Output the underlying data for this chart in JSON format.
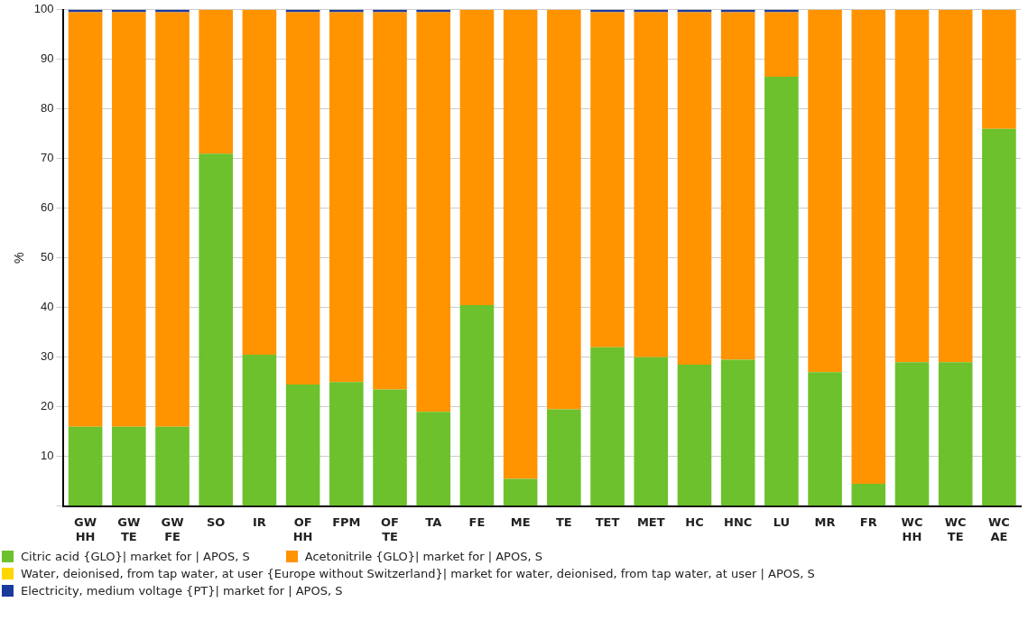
{
  "chart_data": {
    "type": "bar",
    "stacked": true,
    "ylabel": "%",
    "categories": [
      "GW\nHH",
      "GW\nTE",
      "GW\nFE",
      "SO",
      "IR",
      "OF\nHH",
      "FPM",
      "OF\nTE",
      "TA",
      "FE",
      "ME",
      "TE",
      "TET",
      "MET",
      "HC",
      "HNC",
      "LU",
      "MR",
      "FR",
      "WC\nHH",
      "WC\nTE",
      "WC\nAE"
    ],
    "series": [
      {
        "name": "Citric acid {GLO}| market for | APOS, S",
        "color": "#6cc12c",
        "values": [
          16,
          16,
          16,
          71,
          30.5,
          24.5,
          25,
          23.5,
          19,
          40.5,
          5.5,
          19.5,
          32,
          30,
          28.5,
          29.5,
          86.5,
          27,
          4.5,
          29,
          29,
          76
        ]
      },
      {
        "name": "Acetonitrile {GLO}| market for | APOS, S",
        "color": "#ff9300",
        "values": [
          83.5,
          83.5,
          83.5,
          29,
          69.5,
          75,
          74.5,
          76,
          80.5,
          59.5,
          94.5,
          80.5,
          67.5,
          69.5,
          71,
          70,
          13,
          73,
          95.5,
          71,
          71,
          24
        ]
      },
      {
        "name": "Water, deionised, from tap water, at user {Europe without Switzerland}| market for water, deionised, from tap water, at user | APOS, S",
        "color": "#ffd700",
        "values": [
          0,
          0,
          0,
          0,
          0,
          0,
          0,
          0,
          0,
          0,
          0,
          0,
          0,
          0,
          0,
          0,
          0,
          0,
          0,
          0,
          0,
          0
        ]
      },
      {
        "name": "Electricity, medium voltage {PT}| market for | APOS, S",
        "color": "#1a3a9c",
        "values": [
          0.5,
          0.5,
          0.5,
          0,
          0,
          0.5,
          0.5,
          0.5,
          0.5,
          0,
          0,
          0,
          0.5,
          0.5,
          0.5,
          0.5,
          0.5,
          0,
          0,
          0,
          0,
          0
        ]
      }
    ],
    "ylim": [
      0,
      100
    ],
    "yticks": [
      {
        "value": 0,
        "label": null
      },
      10,
      20,
      30,
      40,
      50,
      60,
      70,
      80,
      90,
      100
    ],
    "grid": "y",
    "legend": "bottom"
  }
}
